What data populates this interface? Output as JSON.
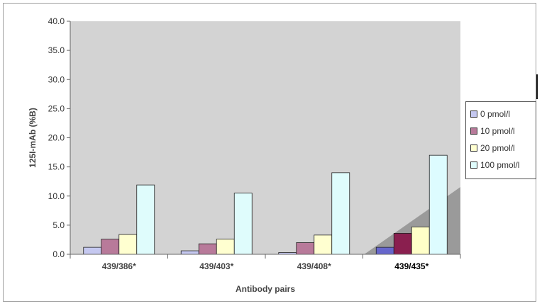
{
  "chart_data": {
    "type": "bar",
    "title": "",
    "xlabel": "Antibody pairs",
    "ylabel": "125I-mAb (%B)",
    "ylim": [
      0,
      40
    ],
    "yticks": [
      "0.0",
      "5.0",
      "10.0",
      "15.0",
      "20.0",
      "25.0",
      "30.0",
      "35.0",
      "40.0"
    ],
    "categories": [
      "439/386*",
      "439/403*",
      "439/408*",
      "439/435*"
    ],
    "emphasized_category": "439/435*",
    "series": [
      {
        "name": "0 pmol/l",
        "values": [
          1.2,
          0.6,
          0.3,
          1.2
        ],
        "color": "#c5c8f0",
        "emph_color": "#6666cc"
      },
      {
        "name": "10 pmol/l",
        "values": [
          2.6,
          1.8,
          2.0,
          3.6
        ],
        "color": "#b87a9a",
        "emph_color": "#8a1f4f"
      },
      {
        "name": "20 pmol/l",
        "values": [
          3.4,
          2.6,
          3.3,
          4.7
        ],
        "color": "#ffffd0",
        "emph_color": "#ffffc8"
      },
      {
        "name": "100 pmol/l",
        "values": [
          11.9,
          10.5,
          14.0,
          17.0
        ],
        "color": "#dffcfc",
        "emph_color": "#ddfcff"
      }
    ],
    "plot_area_color": "#d3d3d3",
    "grid": false,
    "legend_position": "right"
  }
}
